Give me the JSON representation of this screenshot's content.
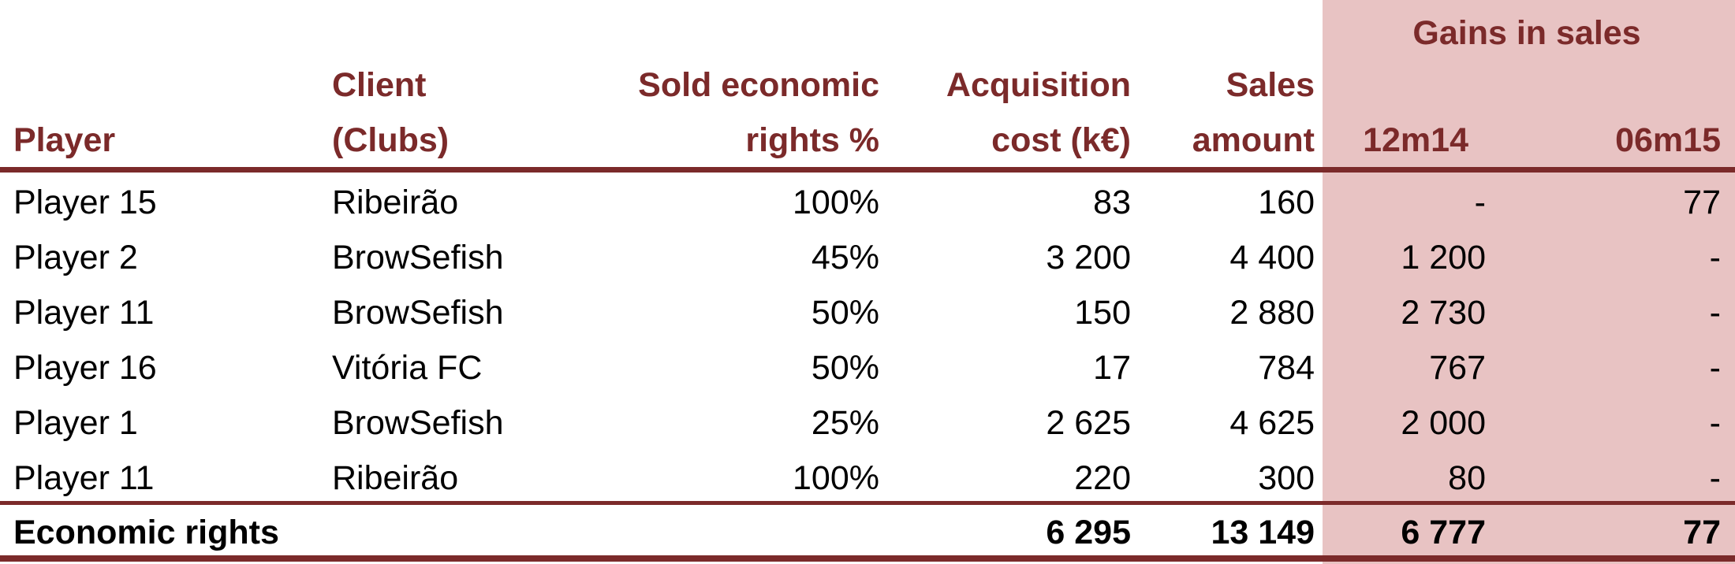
{
  "table": {
    "group_header": "Gains in sales",
    "columns": [
      [
        "Player"
      ],
      [
        "Client",
        "(Clubs)"
      ],
      [
        "Sold economic",
        "rights %"
      ],
      [
        "Acquisition",
        "cost (k€)"
      ],
      [
        "Sales",
        "amount"
      ],
      [
        "12m14"
      ],
      [
        "06m15"
      ]
    ],
    "rows": [
      [
        "Player 15",
        "Ribeirão",
        "100%",
        "83",
        "160",
        "-",
        "77"
      ],
      [
        "Player 2",
        "BrowSefish",
        "45%",
        "3 200",
        "4 400",
        "1 200",
        "-"
      ],
      [
        "Player 11",
        "BrowSefish",
        "50%",
        "150",
        "2 880",
        "2 730",
        "-"
      ],
      [
        "Player 16",
        "Vitória FC",
        "50%",
        "17",
        "784",
        "767",
        "-"
      ],
      [
        "Player 1",
        "BrowSefish",
        "25%",
        "2 625",
        "4 625",
        "2 000",
        "-"
      ],
      [
        "Player 11",
        "Ribeirão",
        "100%",
        "220",
        "300",
        "80",
        "-"
      ]
    ],
    "total": {
      "label": "Economic rights",
      "acquisition_cost": "6 295",
      "sales_amount": "13 149",
      "gains_12m14": "6 777",
      "gains_06m15": "77"
    }
  }
}
